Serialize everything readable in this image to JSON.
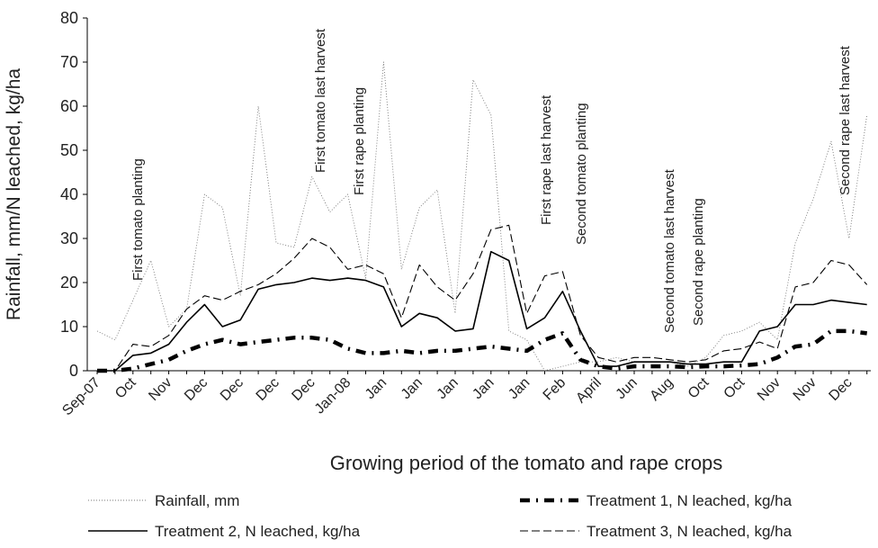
{
  "chart_data": {
    "type": "line",
    "y_label": "Rainfall, mm/N leached, kg/ha",
    "x_label": "Growing period of the tomato and rape crops",
    "categories": [
      "Sep-07",
      null,
      "Oct",
      null,
      "Nov",
      null,
      "Dec",
      null,
      "Dec",
      null,
      "Dec",
      null,
      "Dec",
      null,
      "Jan-08",
      null,
      "Jan",
      null,
      "Jan",
      null,
      "Jan",
      null,
      "Jan",
      null,
      "Jan",
      null,
      "Feb",
      null,
      "April",
      null,
      "Jun",
      null,
      "Aug",
      null,
      "Oct",
      null,
      "Oct",
      null,
      "Nov",
      null,
      "Nov",
      null,
      "Dec",
      null
    ],
    "ylim": [
      0,
      80
    ],
    "yticks": [
      0,
      10,
      20,
      30,
      40,
      50,
      60,
      70,
      80
    ],
    "legend": "bottom",
    "series": [
      {
        "name": "Rainfall, mm",
        "color": "#777777",
        "style": "dotted",
        "values": [
          9,
          7,
          16,
          25,
          10,
          14,
          40,
          37,
          17,
          60,
          29,
          28,
          44,
          36,
          40,
          21,
          70,
          23,
          37,
          41,
          13,
          66,
          58,
          9,
          7,
          0,
          1,
          2,
          2,
          3,
          2,
          2,
          2,
          1,
          3,
          8,
          9,
          11,
          7,
          29,
          39,
          52,
          30,
          58
        ]
      },
      {
        "name": "Treatment 1, N leached, kg/ha",
        "color": "#000000",
        "style": "dash-dot",
        "values": [
          0,
          0,
          0.5,
          1.5,
          2.5,
          4.5,
          6,
          7,
          6,
          6.5,
          7,
          7.5,
          7.5,
          7,
          5,
          4,
          4,
          4.5,
          4,
          4.5,
          4.5,
          5,
          5.5,
          5,
          4.5,
          7,
          8.5,
          2.5,
          1,
          0.5,
          1,
          1,
          1,
          0.8,
          1,
          1,
          1.2,
          1.5,
          3,
          5.5,
          6,
          9,
          9,
          8.5
        ]
      },
      {
        "name": "Treatment 2, N leached, kg/ha",
        "color": "#000000",
        "style": "solid",
        "values": [
          0,
          0,
          3.5,
          4,
          6,
          11,
          15,
          10,
          11.5,
          18.5,
          19.5,
          20,
          21,
          20.5,
          21,
          20.5,
          19,
          10,
          13,
          12,
          9,
          9.5,
          27,
          25,
          9.5,
          12,
          18,
          9,
          1,
          1,
          2,
          2,
          2,
          1.5,
          1.5,
          2,
          2,
          9,
          10,
          15,
          15,
          16,
          15.5,
          15
        ]
      },
      {
        "name": "Treatment 3, N leached, kg/ha",
        "color": "#000000",
        "style": "dashed",
        "values": [
          0,
          0,
          6,
          5.5,
          8,
          14,
          17,
          16,
          18,
          19.5,
          22,
          25.5,
          30,
          28,
          23,
          24,
          22,
          12,
          24,
          19,
          16,
          22,
          32,
          33,
          13,
          21.5,
          22.5,
          8,
          3,
          2,
          3,
          3,
          2.5,
          2,
          2.5,
          4.5,
          5,
          6.5,
          5,
          19,
          20,
          25,
          24,
          19.5
        ]
      }
    ],
    "annotations": [
      "First tomato planting",
      "First tomato last harvest",
      "First rape planting",
      "First rape last harvest",
      "Second tomato planting",
      "Second  tomato last harvest",
      "Second rape  planting",
      "Second rape last harvest"
    ]
  }
}
